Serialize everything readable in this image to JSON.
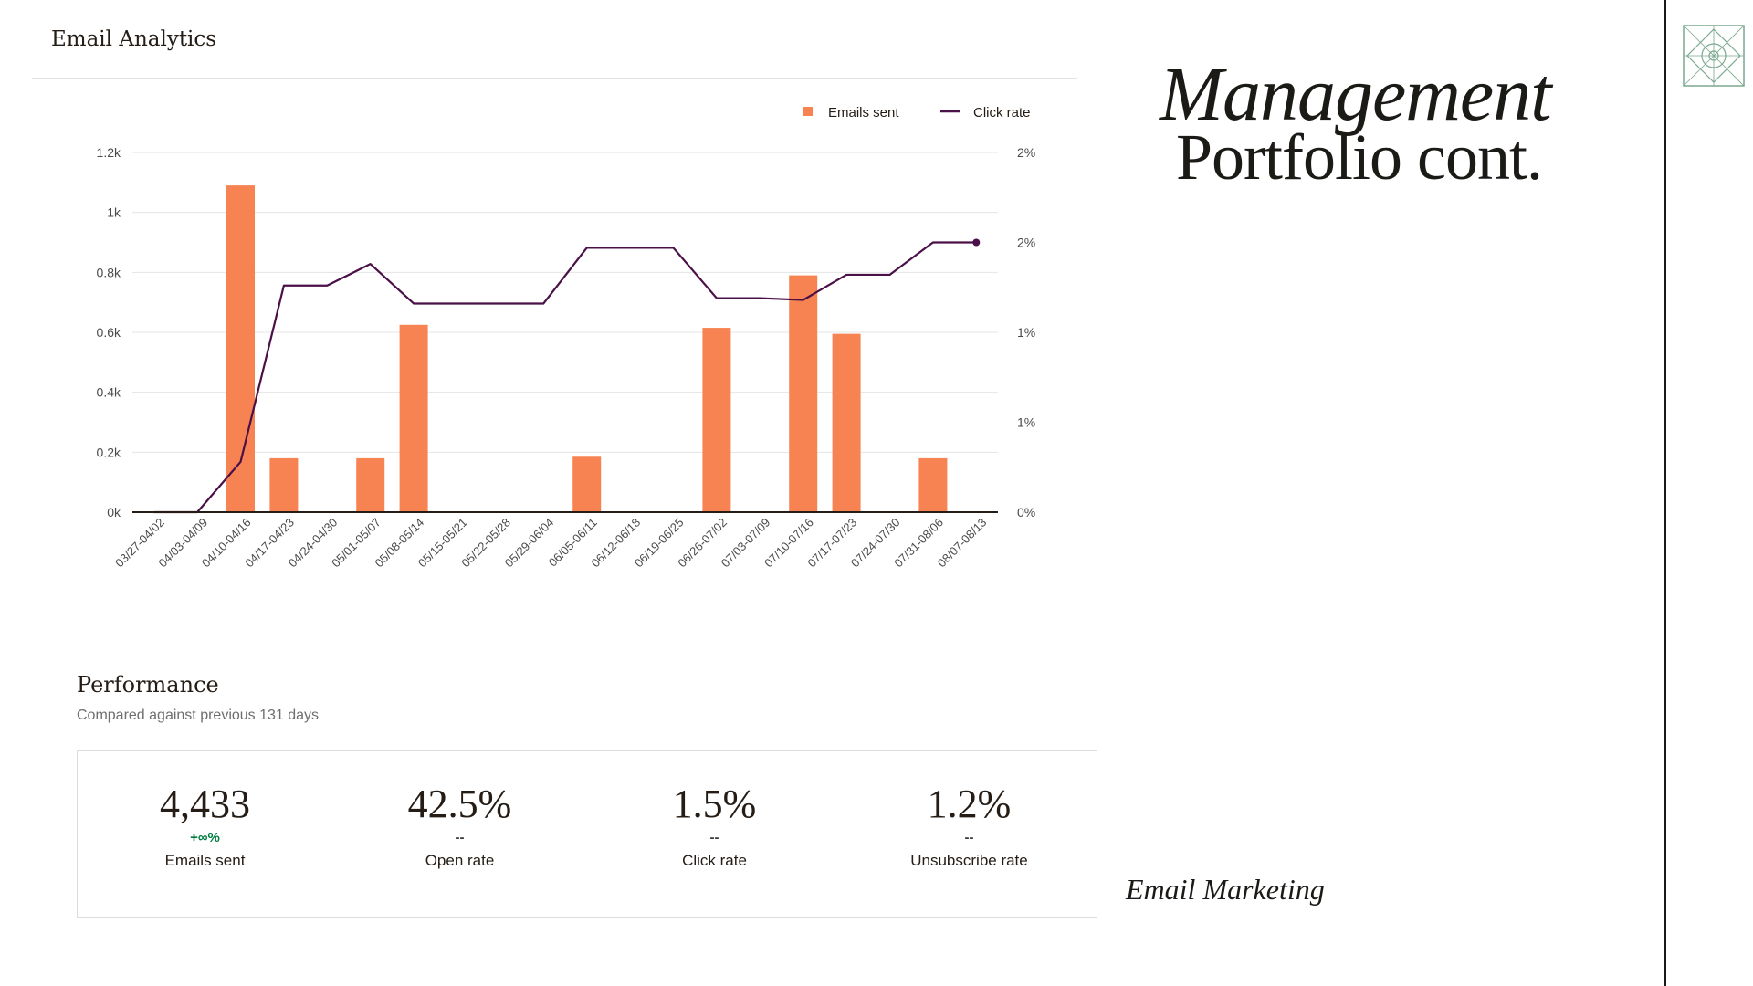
{
  "header": {
    "title": "Email Analytics"
  },
  "slide": {
    "title_line1": "Management",
    "title_line2": "Portfolio cont.",
    "footer_label": "Email Marketing"
  },
  "colors": {
    "bar": "#f88352",
    "line": "#4a1047",
    "grid": "#e4e4e4",
    "axis": "#241c15"
  },
  "chart_data": {
    "type": "bar",
    "title": "",
    "categories": [
      "03/27-04/02",
      "04/03-04/09",
      "04/10-04/16",
      "04/17-04/23",
      "04/24-04/30",
      "05/01-05/07",
      "05/08-05/14",
      "05/15-05/21",
      "05/22-05/28",
      "05/29-06/04",
      "06/05-06/11",
      "06/12-06/18",
      "06/19-06/25",
      "06/26-07/02",
      "07/03-07/09",
      "07/10-07/16",
      "07/17-07/23",
      "07/24-07/30",
      "07/31-08/06",
      "08/07-08/13"
    ],
    "series": [
      {
        "name": "Emails sent",
        "type": "bar",
        "axis": "left",
        "values": [
          0,
          0,
          1090,
          180,
          0,
          180,
          625,
          0,
          0,
          0,
          185,
          0,
          0,
          615,
          0,
          790,
          595,
          0,
          180,
          0
        ]
      },
      {
        "name": "Click rate",
        "type": "line",
        "axis": "right",
        "values": [
          0,
          0,
          0.28,
          1.26,
          1.26,
          1.38,
          1.16,
          1.16,
          1.16,
          1.16,
          1.47,
          1.47,
          1.47,
          1.19,
          1.19,
          1.18,
          1.32,
          1.32,
          1.5,
          1.5
        ]
      }
    ],
    "left_axis": {
      "ylim": [
        0,
        1200
      ],
      "ticks": [
        0,
        200,
        400,
        600,
        800,
        1000,
        1200
      ],
      "tick_labels": [
        "0k",
        "0.2k",
        "0.4k",
        "0.6k",
        "0.8k",
        "1k",
        "1.2k"
      ]
    },
    "right_axis": {
      "ylim": [
        0,
        2
      ],
      "ticks": [
        0,
        0.5,
        1,
        1.5,
        2
      ],
      "tick_labels": [
        "0%",
        "1%",
        "1%",
        "2%",
        "2%"
      ]
    },
    "legend": {
      "position": "top-right",
      "items": [
        "Emails sent",
        "Click rate"
      ]
    },
    "grid": true,
    "xlabel": "",
    "ylabel": ""
  },
  "performance": {
    "title": "Performance",
    "subtitle": "Compared against previous 131 days",
    "stats": [
      {
        "value": "4,433",
        "change": "+∞%",
        "label": "Emails sent"
      },
      {
        "value": "42.5%",
        "change": "--",
        "label": "Open rate"
      },
      {
        "value": "1.5%",
        "change": "--",
        "label": "Click rate"
      },
      {
        "value": "1.2%",
        "change": "--",
        "label": "Unsubscribe rate"
      }
    ]
  }
}
